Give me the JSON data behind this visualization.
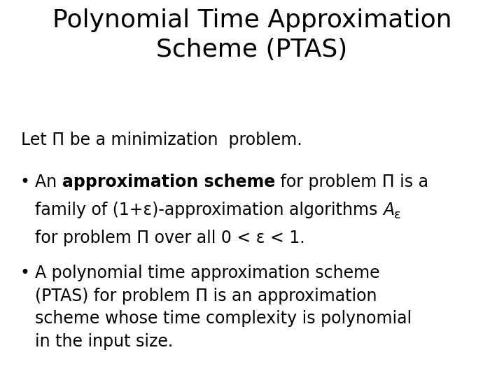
{
  "title": "Polynomial Time Approximation\nScheme (PTAS)",
  "intro": "Let Π be a minimization  problem.",
  "background_color": "#ffffff",
  "text_color": "#000000",
  "title_fontsize": 26,
  "body_fontsize": 17,
  "bullet2_text": "A polynomial time approximation scheme\n(PTAS) for problem Π is an approximation\nscheme whose time complexity is polynomial\nin the input size.",
  "b1_line2": "family of (1+ε)-approximation algorithms ",
  "b1_line3": "for problem Π over all 0 < ε < 1.",
  "font_family": "DejaVu Sans"
}
